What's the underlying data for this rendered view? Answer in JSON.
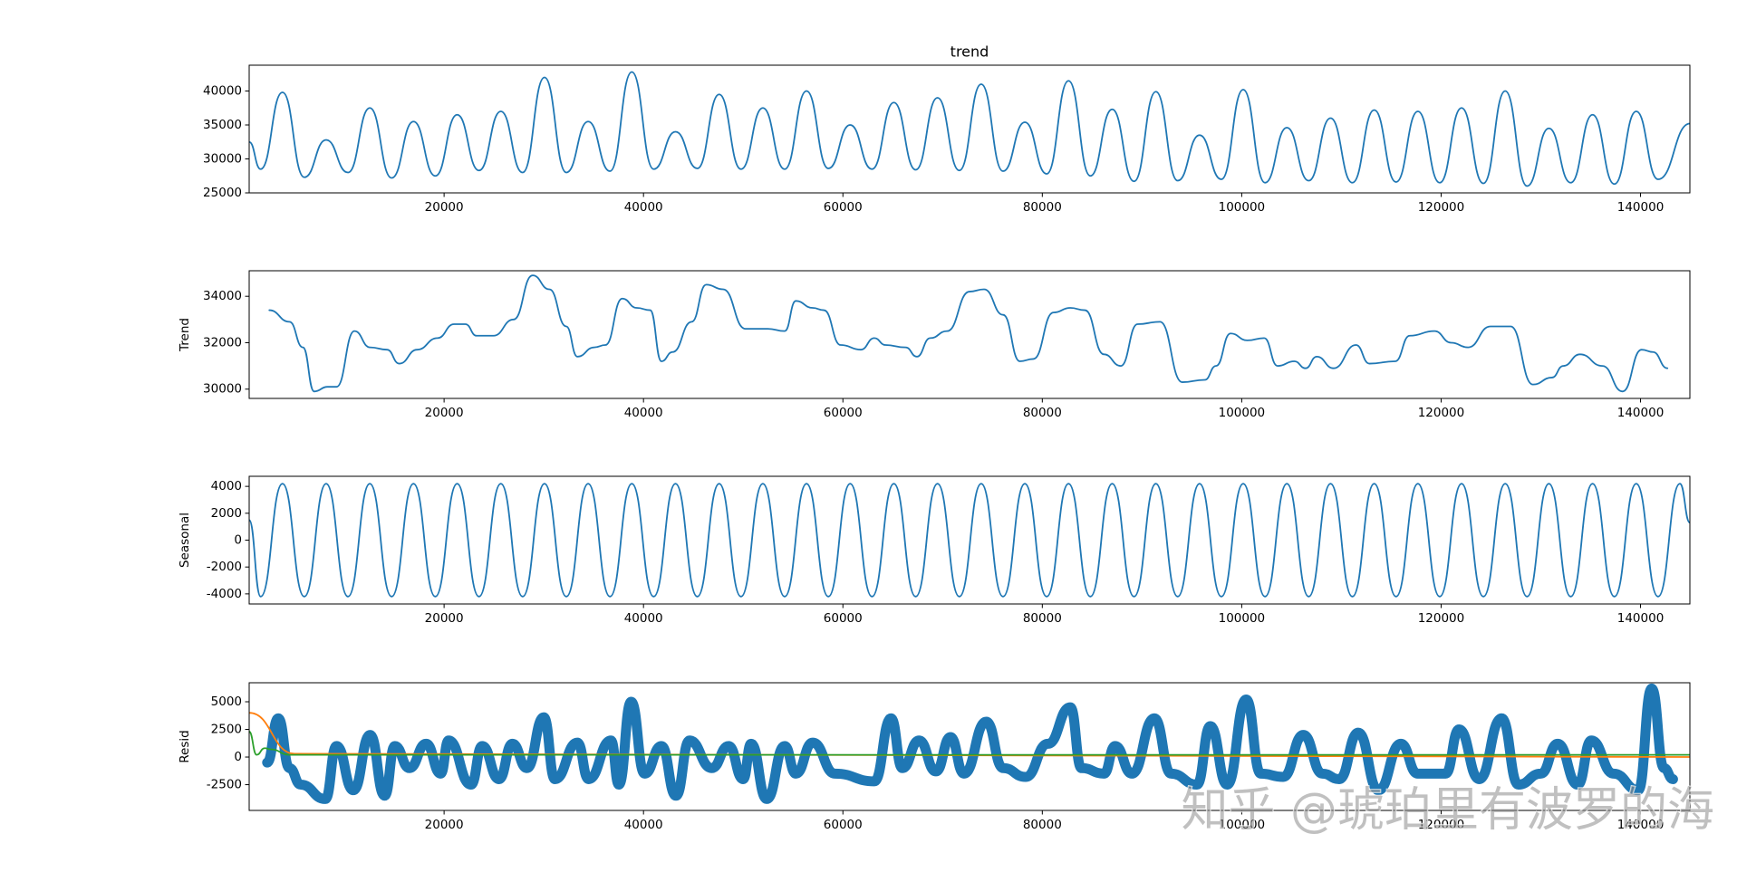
{
  "chart_data": [
    {
      "type": "line",
      "title": "trend",
      "xlim": [
        450,
        144950
      ],
      "xticks": [
        20000,
        40000,
        60000,
        80000,
        100000,
        120000,
        140000
      ],
      "ylim": [
        25000,
        43800
      ],
      "yticks": [
        25000,
        30000,
        35000,
        40000
      ],
      "series": [
        {
          "color": "#1f77b4",
          "linewidth": 1.8,
          "x": [
            450,
            1600,
            3790,
            5980,
            8170,
            10360,
            12550,
            14740,
            16930,
            19120,
            21310,
            23500,
            25690,
            27880,
            30070,
            32260,
            34450,
            36640,
            38830,
            41020,
            43210,
            45400,
            47590,
            49780,
            51970,
            54160,
            56350,
            58540,
            60730,
            62920,
            65110,
            67300,
            69490,
            71680,
            73870,
            76060,
            78250,
            80440,
            82630,
            84820,
            87010,
            89200,
            91390,
            93580,
            95770,
            97960,
            100150,
            102340,
            104530,
            106720,
            108910,
            111100,
            113290,
            115480,
            117670,
            119860,
            122050,
            124240,
            126430,
            128620,
            130810,
            133000,
            135190,
            137380,
            139570,
            141760,
            144950
          ],
          "values": [
            32500,
            28500,
            39800,
            27300,
            32800,
            28000,
            37500,
            27200,
            35500,
            27500,
            36500,
            28300,
            37000,
            28000,
            42000,
            28000,
            35500,
            28200,
            42800,
            28500,
            34000,
            28600,
            39500,
            28500,
            37500,
            28500,
            40000,
            28600,
            35000,
            28500,
            38300,
            28400,
            39000,
            28300,
            41000,
            28200,
            35400,
            27800,
            41500,
            27500,
            37300,
            26700,
            39900,
            26800,
            33500,
            27000,
            40200,
            26500,
            34600,
            26800,
            36000,
            26500,
            37200,
            26600,
            37000,
            26500,
            37500,
            26400,
            40000,
            26000,
            34500,
            26500,
            36500,
            26300,
            37000,
            27000,
            35200
          ]
        }
      ]
    },
    {
      "type": "line",
      "ylabel": "Trend",
      "xlim": [
        450,
        144950
      ],
      "xticks": [
        20000,
        40000,
        60000,
        80000,
        100000,
        120000,
        140000
      ],
      "ylim": [
        29600,
        35100
      ],
      "yticks": [
        30000,
        32000,
        34000
      ],
      "series": [
        {
          "color": "#1f77b4",
          "linewidth": 1.8,
          "x": [
            2470,
            4490,
            5840,
            6970,
            8310,
            9210,
            11010,
            12580,
            14270,
            15510,
            17300,
            19330,
            21010,
            22130,
            23260,
            24940,
            26970,
            28880,
            30560,
            32250,
            33370,
            35060,
            36180,
            37870,
            39330,
            40670,
            41800,
            42920,
            44830,
            46290,
            47980,
            50220,
            52470,
            54160,
            55280,
            56970,
            58090,
            59780,
            61800,
            63150,
            64270,
            66290,
            67420,
            68760,
            70450,
            72700,
            74160,
            76070,
            77750,
            79100,
            81120,
            82810,
            84270,
            86180,
            87870,
            89550,
            91800,
            94040,
            96290,
            97420,
            98880,
            100560,
            102250,
            103600,
            105280,
            106400,
            107530,
            109210,
            111460,
            112810,
            115390,
            116850,
            119330,
            121010,
            122700,
            124940,
            126970,
            129210,
            131120,
            132250,
            133930,
            136180,
            138200,
            140110,
            141240,
            142700
          ],
          "values": [
            33400,
            32900,
            31800,
            29900,
            30100,
            30100,
            32500,
            31800,
            31700,
            31100,
            31700,
            32200,
            32800,
            32800,
            32300,
            32300,
            33000,
            34900,
            34300,
            32700,
            31400,
            31800,
            31900,
            33900,
            33500,
            33400,
            31200,
            31600,
            32900,
            34500,
            34300,
            32600,
            32600,
            32500,
            33800,
            33500,
            33400,
            31900,
            31700,
            32200,
            31900,
            31800,
            31400,
            32200,
            32500,
            34200,
            34300,
            33200,
            31200,
            31300,
            33300,
            33500,
            33400,
            31500,
            31000,
            32800,
            32900,
            30300,
            30400,
            31000,
            32400,
            32100,
            32200,
            31000,
            31200,
            30900,
            31400,
            30900,
            31900,
            31100,
            31200,
            32300,
            32500,
            32000,
            31800,
            32700,
            32700,
            30200,
            30500,
            31000,
            31500,
            31000,
            29900,
            31700,
            31600,
            30900
          ]
        }
      ]
    },
    {
      "type": "line",
      "ylabel": "Seasonal",
      "xlim": [
        450,
        144950
      ],
      "xticks": [
        20000,
        40000,
        60000,
        80000,
        100000,
        120000,
        140000
      ],
      "ylim": [
        -4750,
        4750
      ],
      "yticks": [
        -4000,
        -2000,
        0,
        2000,
        4000
      ],
      "series": [
        {
          "color": "#1f77b4",
          "linewidth": 1.8,
          "x": [
            450,
            1600,
            3790,
            5980,
            8170,
            10360,
            12550,
            14740,
            16930,
            19120,
            21310,
            23500,
            25690,
            27880,
            30070,
            32260,
            34450,
            36640,
            38830,
            41020,
            43210,
            45400,
            47590,
            49780,
            51970,
            54160,
            56350,
            58540,
            60730,
            62920,
            65110,
            67300,
            69490,
            71680,
            73870,
            76060,
            78250,
            80440,
            82630,
            84820,
            87010,
            89200,
            91390,
            93580,
            95770,
            97960,
            100150,
            102340,
            104530,
            106720,
            108910,
            111100,
            113290,
            115480,
            117670,
            119860,
            122050,
            124240,
            126430,
            128620,
            130810,
            133000,
            135190,
            137380,
            139570,
            141760,
            143950,
            144950
          ],
          "values": [
            1500,
            -4200,
            4200,
            -4200,
            4200,
            -4200,
            4200,
            -4200,
            4200,
            -4200,
            4200,
            -4200,
            4200,
            -4200,
            4200,
            -4200,
            4200,
            -4200,
            4200,
            -4200,
            4200,
            -4200,
            4200,
            -4200,
            4200,
            -4200,
            4200,
            -4200,
            4200,
            -4200,
            4200,
            -4200,
            4200,
            -4200,
            4200,
            -4200,
            4200,
            -4200,
            4200,
            -4200,
            4200,
            -4200,
            4200,
            -4200,
            4200,
            -4200,
            4200,
            -4200,
            4200,
            -4200,
            4200,
            -4200,
            4200,
            -4200,
            4200,
            -4200,
            4200,
            -4200,
            4200,
            -4200,
            4200,
            -4200,
            4200,
            -4200,
            4200,
            -4200,
            4200,
            1300
          ]
        }
      ]
    },
    {
      "type": "line",
      "ylabel": "Resid",
      "xlim": [
        450,
        144950
      ],
      "xticks": [
        20000,
        40000,
        60000,
        80000,
        100000,
        120000,
        140000
      ],
      "ylim": [
        -4830,
        6720
      ],
      "yticks": [
        -2500,
        0,
        2500,
        5000
      ],
      "series": [
        {
          "color": "#1f77b4",
          "linewidth": 11,
          "x": [
            2250,
            3370,
            4490,
            5620,
            8090,
            9210,
            10900,
            12580,
            14040,
            15060,
            16520,
            18200,
            19660,
            20450,
            22700,
            23820,
            25510,
            26850,
            28310,
            30000,
            31120,
            33370,
            34490,
            36740,
            37530,
            38760,
            40110,
            41800,
            43260,
            44610,
            46850,
            48540,
            50000,
            50790,
            52360,
            54160,
            55280,
            56970,
            59210,
            63150,
            64830,
            65960,
            67640,
            69330,
            70790,
            72140,
            74380,
            76070,
            78320,
            80560,
            82810,
            83930,
            86180,
            87300,
            88990,
            91240,
            92920,
            95510,
            96850,
            98540,
            100450,
            101910,
            104160,
            106180,
            108090,
            109780,
            111690,
            113710,
            115960,
            117640,
            120450,
            121800,
            123820,
            126070,
            127750,
            130000,
            131690,
            133710,
            135060,
            137300,
            139780,
            141120,
            142360,
            143260
          ],
          "values": [
            -500,
            3500,
            -1000,
            -2500,
            -3800,
            1000,
            -3000,
            2000,
            -3500,
            1000,
            -1000,
            1200,
            -1500,
            1500,
            -2500,
            1000,
            -2000,
            1200,
            -1000,
            3600,
            -2000,
            1300,
            -2000,
            1500,
            -2500,
            5000,
            -1500,
            1000,
            -3500,
            1500,
            -1000,
            1000,
            -2000,
            1200,
            -3800,
            1000,
            -1500,
            1300,
            -1500,
            -2200,
            3500,
            -1000,
            1500,
            -1300,
            1800,
            -1500,
            3200,
            -1000,
            -1800,
            1200,
            4500,
            -1000,
            -1500,
            1000,
            -1500,
            3500,
            -1500,
            -2500,
            2800,
            -2500,
            5200,
            -1500,
            -1800,
            2000,
            -1500,
            -2000,
            2200,
            -3000,
            1200,
            -1500,
            -1500,
            2500,
            -2000,
            3500,
            -2500,
            -1500,
            1200,
            -2500,
            1500,
            -1500,
            -3000,
            6200,
            -1000,
            -2000
          ]
        },
        {
          "color": "#ff7f0e",
          "linewidth": 1.8,
          "x": [
            450,
            5000,
            144950
          ],
          "values": [
            4000,
            300,
            0
          ]
        },
        {
          "color": "#2ca02c",
          "linewidth": 1.8,
          "x": [
            450,
            1200,
            2000,
            2600,
            4500,
            144950
          ],
          "values": [
            2300,
            200,
            800,
            700,
            200,
            200
          ]
        }
      ]
    }
  ],
  "watermark": "知乎 @琥珀里有波罗的海"
}
